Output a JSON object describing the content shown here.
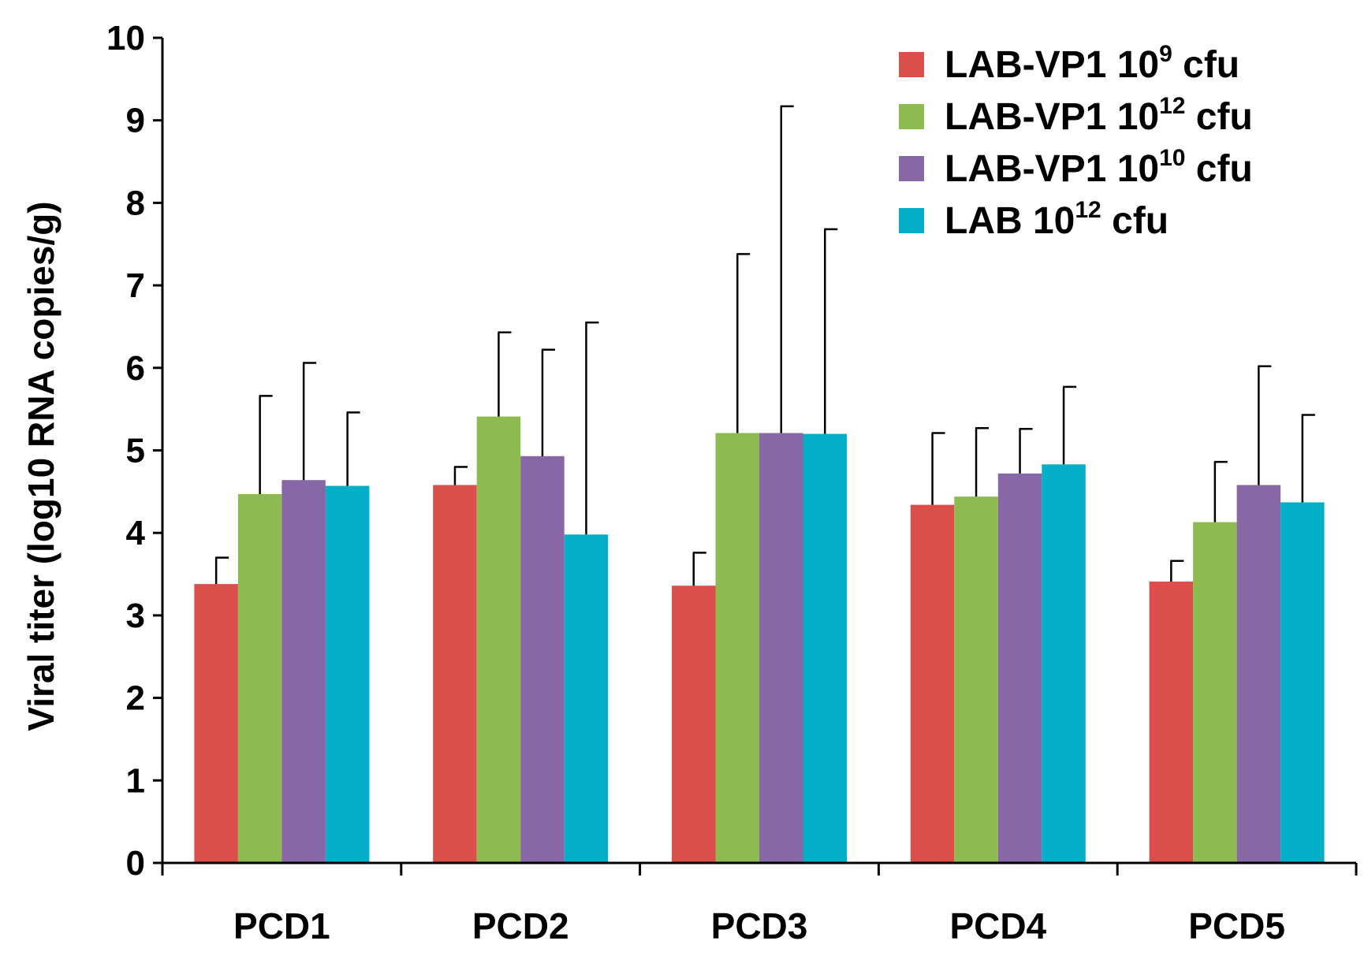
{
  "chart_data": {
    "type": "bar",
    "title": "",
    "xlabel": "",
    "ylabel": "Viral titer (log10 RNA copies/g)",
    "ylim": [
      0,
      10
    ],
    "yticks": [
      "0",
      "1",
      "2",
      "3",
      "4",
      "5",
      "6",
      "7",
      "8",
      "9",
      "10"
    ],
    "categories": [
      "PCD1",
      "PCD2",
      "PCD3",
      "PCD4",
      "PCD5"
    ],
    "grid": false,
    "legend_position": "top-right",
    "series": [
      {
        "name": "LAB-VP1 10^9 cfu",
        "label_base": "LAB-VP1 10",
        "label_exp": "9",
        "label_unit": "cfu",
        "color": "#DA4F4A",
        "values": [
          3.38,
          4.58,
          3.36,
          4.34,
          3.41
        ],
        "errors": [
          0.32,
          0.22,
          0.4,
          0.87,
          0.25
        ]
      },
      {
        "name": "LAB-VP1 10^12 cfu",
        "label_base": "LAB-VP1 10",
        "label_exp": "12",
        "label_unit": "cfu",
        "color": "#8DBB50",
        "values": [
          4.47,
          5.41,
          5.21,
          4.44,
          4.13
        ],
        "errors": [
          1.19,
          1.02,
          2.17,
          0.83,
          0.73
        ]
      },
      {
        "name": "LAB-VP1 10^10 cfu",
        "label_base": "LAB-VP1 10",
        "label_exp": "10",
        "label_unit": "cfu",
        "color": "#8767A6",
        "values": [
          4.64,
          4.93,
          5.21,
          4.72,
          4.58
        ],
        "errors": [
          1.42,
          1.29,
          3.96,
          0.54,
          1.44
        ]
      },
      {
        "name": "LAB 10^12 cfu",
        "label_base": "LAB 10",
        "label_exp": "12",
        "label_unit": "cfu",
        "color": "#03AEC8",
        "values": [
          4.57,
          3.98,
          5.2,
          4.83,
          4.37
        ],
        "errors": [
          0.89,
          2.57,
          2.48,
          0.94,
          1.06
        ]
      }
    ]
  }
}
